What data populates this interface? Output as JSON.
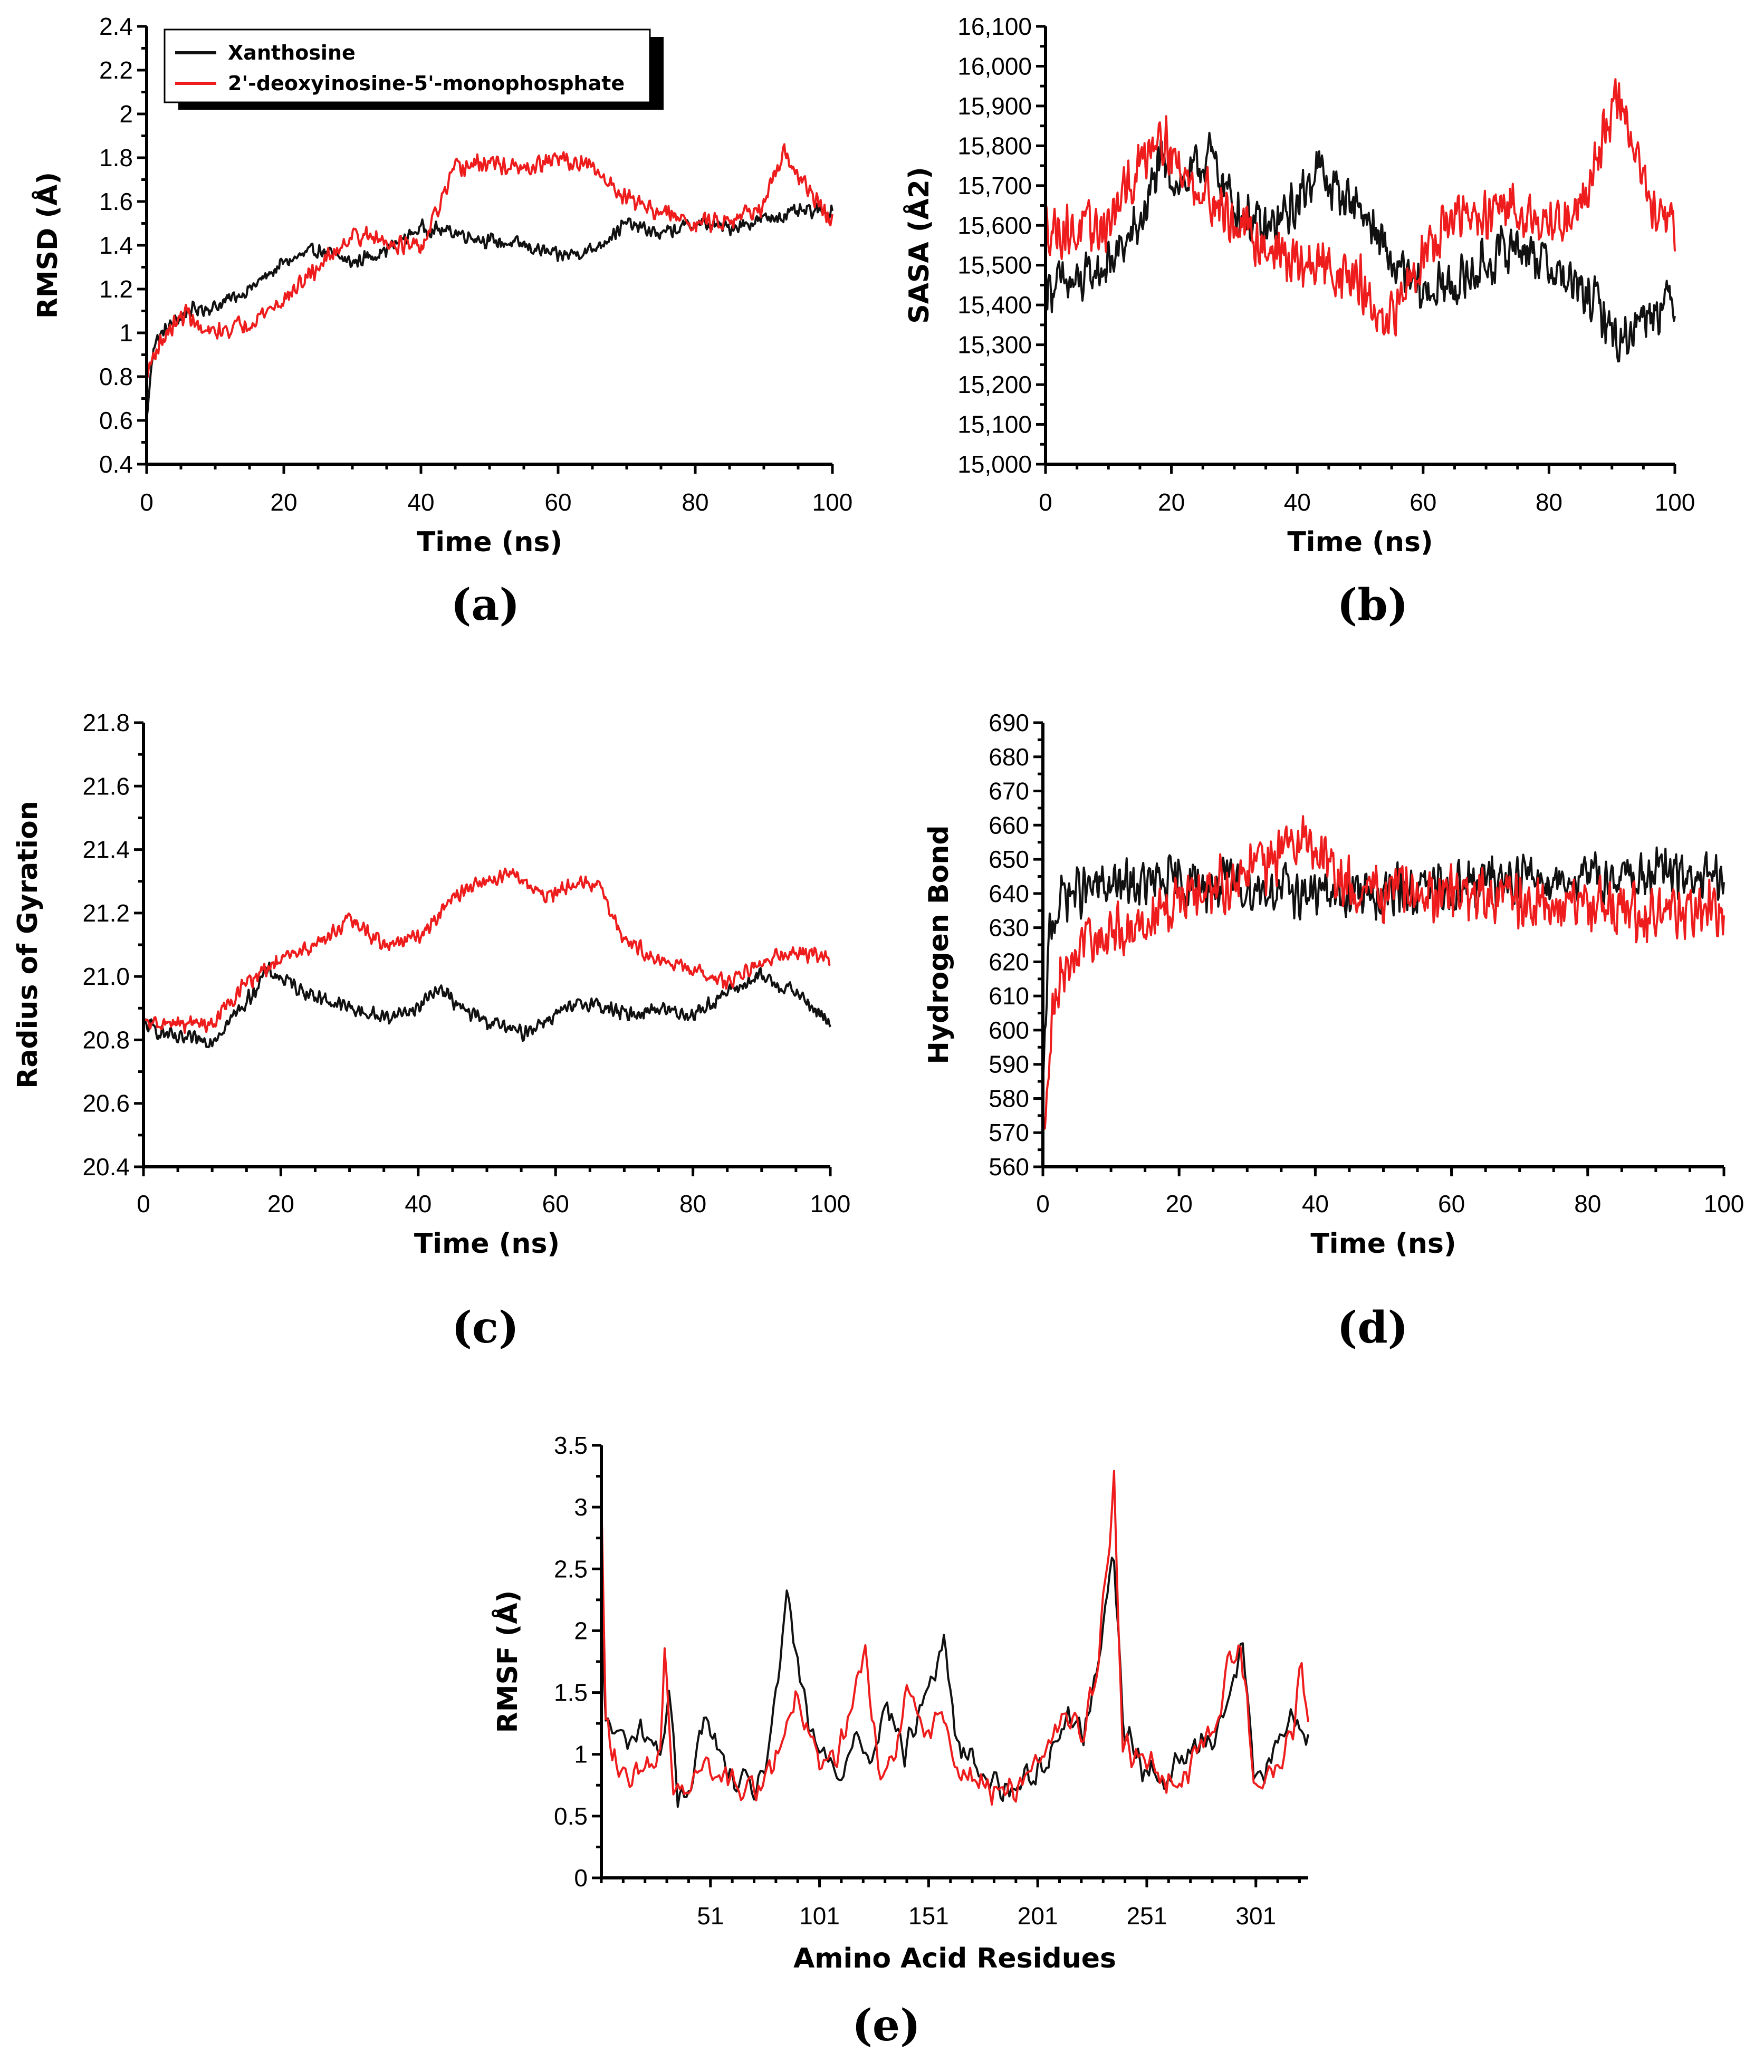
{
  "colors": {
    "xanthosine": "#111111",
    "deoxyinosine": "#ee1c1c"
  },
  "legend": {
    "entries": [
      "Xanthosine",
      "2'-deoxyinosine-5'-monophosphate"
    ]
  },
  "chart_data": [
    {
      "id": "a",
      "panel_label": "(a)",
      "type": "line",
      "xlabel": "Time (ns)",
      "ylabel": "RMSD (Å)",
      "xlim": [
        0,
        100
      ],
      "ylim": [
        0.4,
        2.4
      ],
      "xticks": [
        0,
        20,
        40,
        60,
        80,
        100
      ],
      "xtick_labels": [
        "0",
        "20",
        "40",
        "60",
        "80",
        "100"
      ],
      "yticks": [
        0.4,
        0.6,
        0.8,
        1,
        1.2,
        1.4,
        1.6,
        1.8,
        2,
        2.2,
        2.4
      ],
      "ytick_labels": [
        "0.4",
        "0.6",
        "0.8",
        "1",
        "1.2",
        "1.4",
        "1.6",
        "1.8",
        "2",
        "2.2",
        "2.4"
      ],
      "legend": "top-left",
      "series": [
        {
          "name": "Xanthosine",
          "color": "#111111",
          "noise": 0.04,
          "x": [
            0,
            1,
            3,
            6,
            10,
            15,
            20,
            25,
            30,
            35,
            40,
            45,
            50,
            55,
            60,
            65,
            70,
            75,
            80,
            85,
            90,
            95,
            100
          ],
          "y": [
            0.6,
            0.95,
            1.02,
            1.1,
            1.12,
            1.2,
            1.32,
            1.38,
            1.32,
            1.38,
            1.48,
            1.46,
            1.42,
            1.4,
            1.35,
            1.38,
            1.5,
            1.45,
            1.5,
            1.48,
            1.52,
            1.55,
            1.56
          ]
        },
        {
          "name": "2'-deoxyinosine-5'-monophosphate",
          "color": "#ee1c1c",
          "noise": 0.05,
          "x": [
            0,
            1,
            3,
            6,
            8,
            10,
            15,
            20,
            25,
            30,
            35,
            40,
            45,
            50,
            55,
            60,
            65,
            70,
            75,
            80,
            85,
            90,
            93,
            95,
            100
          ],
          "y": [
            0.8,
            0.9,
            1.0,
            1.1,
            1.0,
            1.0,
            1.05,
            1.15,
            1.3,
            1.45,
            1.42,
            1.38,
            1.75,
            1.78,
            1.74,
            1.8,
            1.75,
            1.62,
            1.55,
            1.5,
            1.52,
            1.58,
            1.82,
            1.72,
            1.5
          ]
        }
      ]
    },
    {
      "id": "b",
      "panel_label": "(b)",
      "type": "line",
      "xlabel": "Time (ns)",
      "ylabel": "SASA (Å2)",
      "xlim": [
        0,
        100
      ],
      "ylim": [
        15000,
        16100
      ],
      "xticks": [
        0,
        20,
        40,
        60,
        80,
        100
      ],
      "xtick_labels": [
        "0",
        "20",
        "40",
        "60",
        "80",
        "100"
      ],
      "yticks": [
        15000,
        15100,
        15200,
        15300,
        15400,
        15500,
        15600,
        15700,
        15800,
        15900,
        16000,
        16100
      ],
      "ytick_labels": [
        "15,000",
        "15,100",
        "15,200",
        "15,300",
        "15,400",
        "15,500",
        "15,600",
        "15,700",
        "15,800",
        "15,900",
        "16,000",
        "16,100"
      ],
      "series": [
        {
          "name": "Xanthosine",
          "color": "#111111",
          "noise": 75,
          "x": [
            0,
            5,
            10,
            15,
            18,
            22,
            26,
            30,
            35,
            40,
            43,
            45,
            50,
            55,
            60,
            65,
            70,
            75,
            80,
            85,
            88,
            91,
            95,
            100
          ],
          "y": [
            15450,
            15450,
            15500,
            15600,
            15750,
            15700,
            15780,
            15650,
            15580,
            15650,
            15750,
            15700,
            15650,
            15500,
            15430,
            15450,
            15500,
            15560,
            15500,
            15430,
            15400,
            15300,
            15380,
            15420
          ]
        },
        {
          "name": "2'-deoxyinosine-5'-monophosphate",
          "color": "#ee1c1c",
          "noise": 80,
          "x": [
            0,
            5,
            10,
            15,
            18,
            22,
            26,
            30,
            35,
            40,
            45,
            50,
            54,
            58,
            62,
            66,
            70,
            75,
            80,
            85,
            88,
            91,
            94,
            97,
            100
          ],
          "y": [
            15600,
            15580,
            15600,
            15750,
            15850,
            15720,
            15680,
            15600,
            15550,
            15500,
            15500,
            15450,
            15320,
            15480,
            15580,
            15620,
            15620,
            15650,
            15600,
            15650,
            15800,
            15920,
            15780,
            15600,
            15600
          ]
        }
      ]
    },
    {
      "id": "c",
      "panel_label": "(c)",
      "type": "line",
      "xlabel": "Time (ns)",
      "ylabel": "Radius of Gyration",
      "xlim": [
        0,
        100
      ],
      "ylim": [
        20.4,
        21.8
      ],
      "xticks": [
        0,
        20,
        40,
        60,
        80,
        100
      ],
      "xtick_labels": [
        "0",
        "20",
        "40",
        "60",
        "80",
        "100"
      ],
      "yticks": [
        20.4,
        20.6,
        20.8,
        21.0,
        21.2,
        21.4,
        21.6,
        21.8
      ],
      "ytick_labels": [
        "20.4",
        "20.6",
        "20.8",
        "21.0",
        "21.2",
        "21.4",
        "21.6",
        "21.8"
      ],
      "series": [
        {
          "name": "Xanthosine",
          "color": "#111111",
          "noise": 0.03,
          "x": [
            0,
            5,
            10,
            15,
            18,
            22,
            26,
            30,
            35,
            40,
            43,
            46,
            50,
            55,
            60,
            65,
            70,
            75,
            80,
            85,
            90,
            95,
            100
          ],
          "y": [
            20.85,
            20.8,
            20.8,
            20.92,
            21.02,
            20.97,
            20.93,
            20.9,
            20.87,
            20.9,
            20.97,
            20.9,
            20.86,
            20.82,
            20.88,
            20.92,
            20.88,
            20.9,
            20.88,
            20.95,
            21.0,
            20.95,
            20.85
          ]
        },
        {
          "name": "2'-deoxyinosine-5'-monophosphate",
          "color": "#ee1c1c",
          "noise": 0.03,
          "x": [
            0,
            5,
            10,
            15,
            20,
            25,
            30,
            35,
            40,
            45,
            50,
            54,
            58,
            62,
            66,
            70,
            75,
            80,
            85,
            90,
            95,
            100
          ],
          "y": [
            20.85,
            20.85,
            20.85,
            20.98,
            21.05,
            21.1,
            21.18,
            21.1,
            21.12,
            21.25,
            21.3,
            21.33,
            21.25,
            21.28,
            21.3,
            21.12,
            21.05,
            21.02,
            20.98,
            21.05,
            21.08,
            21.05
          ]
        }
      ]
    },
    {
      "id": "d",
      "panel_label": "(d)",
      "type": "line",
      "xlabel": "Time (ns)",
      "ylabel": "Hydrogen Bond",
      "xlim": [
        0,
        100
      ],
      "ylim": [
        560,
        690
      ],
      "xticks": [
        0,
        20,
        40,
        60,
        80,
        100
      ],
      "xtick_labels": [
        "0",
        "20",
        "40",
        "60",
        "80",
        "100"
      ],
      "yticks": [
        560,
        570,
        580,
        590,
        600,
        610,
        620,
        630,
        640,
        650,
        660,
        670,
        680,
        690
      ],
      "ytick_labels": [
        "560",
        "570",
        "580",
        "590",
        "600",
        "610",
        "620",
        "630",
        "640",
        "650",
        "660",
        "670",
        "680",
        "690"
      ],
      "series": [
        {
          "name": "Xanthosine",
          "color": "#111111",
          "noise": 9,
          "x": [
            0,
            1,
            3,
            10,
            20,
            30,
            40,
            50,
            60,
            70,
            80,
            90,
            100
          ],
          "y": [
            580,
            630,
            640,
            642,
            643,
            642,
            640,
            640,
            642,
            645,
            644,
            646,
            643
          ]
        },
        {
          "name": "2'-deoxyinosine-5'-monophosphate",
          "color": "#ee1c1c",
          "noise": 10,
          "x": [
            0,
            1,
            3,
            6,
            10,
            15,
            20,
            30,
            37,
            40,
            45,
            50,
            60,
            70,
            80,
            90,
            100
          ],
          "y": [
            565,
            600,
            615,
            625,
            628,
            632,
            638,
            645,
            655,
            652,
            642,
            640,
            640,
            638,
            636,
            635,
            635
          ]
        }
      ]
    },
    {
      "id": "e",
      "panel_label": "(e)",
      "type": "line",
      "xlabel": "Amino Acid Residues",
      "ylabel": "RMSF (Å)",
      "xlim": [
        1,
        325
      ],
      "ylim": [
        0,
        3.5
      ],
      "xticks": [
        51,
        101,
        151,
        201,
        251,
        301
      ],
      "xtick_labels": [
        "51",
        "101",
        "151",
        "201",
        "251",
        "301"
      ],
      "yticks": [
        0,
        0.5,
        1,
        1.5,
        2,
        2.5,
        3,
        3.5
      ],
      "ytick_labels": [
        "0",
        "0.5",
        "1",
        "1.5",
        "2",
        "2.5",
        "3",
        "3.5"
      ],
      "series": [
        {
          "name": "Xanthosine",
          "color": "#111111",
          "noise": 0.15,
          "x": [
            1,
            3,
            6,
            12,
            20,
            28,
            32,
            36,
            42,
            48,
            60,
            70,
            76,
            82,
            86,
            90,
            96,
            102,
            110,
            118,
            124,
            132,
            140,
            150,
            158,
            164,
            172,
            180,
            188,
            196,
            206,
            214,
            222,
            228,
            232,
            236,
            240,
            250,
            260,
            270,
            282,
            290,
            295,
            300,
            310,
            318,
            325
          ],
          "y": [
            2.0,
            1.3,
            1.2,
            1.1,
            1.2,
            1.0,
            1.5,
            0.6,
            0.8,
            1.3,
            0.8,
            0.7,
            0.9,
            1.5,
            2.4,
            1.8,
            1.2,
            1.0,
            0.8,
            1.2,
            1.0,
            1.4,
            1.0,
            1.5,
            1.9,
            1.1,
            0.9,
            0.8,
            0.7,
            0.8,
            1.0,
            1.3,
            1.2,
            1.6,
            2.3,
            2.6,
            1.2,
            0.9,
            0.8,
            1.0,
            1.2,
            1.5,
            1.9,
            0.8,
            1.0,
            1.3,
            1.2
          ]
        },
        {
          "name": "2'-deoxyinosine-5'-monophosphate",
          "color": "#ee1c1c",
          "noise": 0.16,
          "x": [
            1,
            3,
            6,
            12,
            20,
            28,
            30,
            34,
            40,
            48,
            60,
            70,
            78,
            84,
            90,
            96,
            102,
            110,
            118,
            122,
            128,
            136,
            142,
            150,
            158,
            164,
            172,
            180,
            188,
            196,
            204,
            212,
            222,
            228,
            232,
            236,
            240,
            250,
            260,
            270,
            282,
            288,
            294,
            300,
            310,
            318,
            322,
            325
          ],
          "y": [
            3.05,
            1.3,
            1.0,
            0.8,
            0.8,
            1.0,
            1.9,
            0.6,
            0.7,
            0.9,
            0.8,
            0.7,
            0.8,
            1.2,
            1.5,
            1.1,
            0.9,
            1.0,
            1.6,
            1.9,
            0.8,
            1.0,
            1.5,
            1.1,
            1.3,
            0.9,
            0.8,
            0.7,
            0.7,
            0.8,
            1.0,
            1.3,
            1.2,
            1.7,
            2.4,
            3.2,
            1.1,
            0.9,
            0.8,
            0.9,
            1.2,
            1.7,
            1.9,
            0.8,
            0.9,
            1.1,
            1.8,
            1.2
          ]
        }
      ]
    }
  ]
}
